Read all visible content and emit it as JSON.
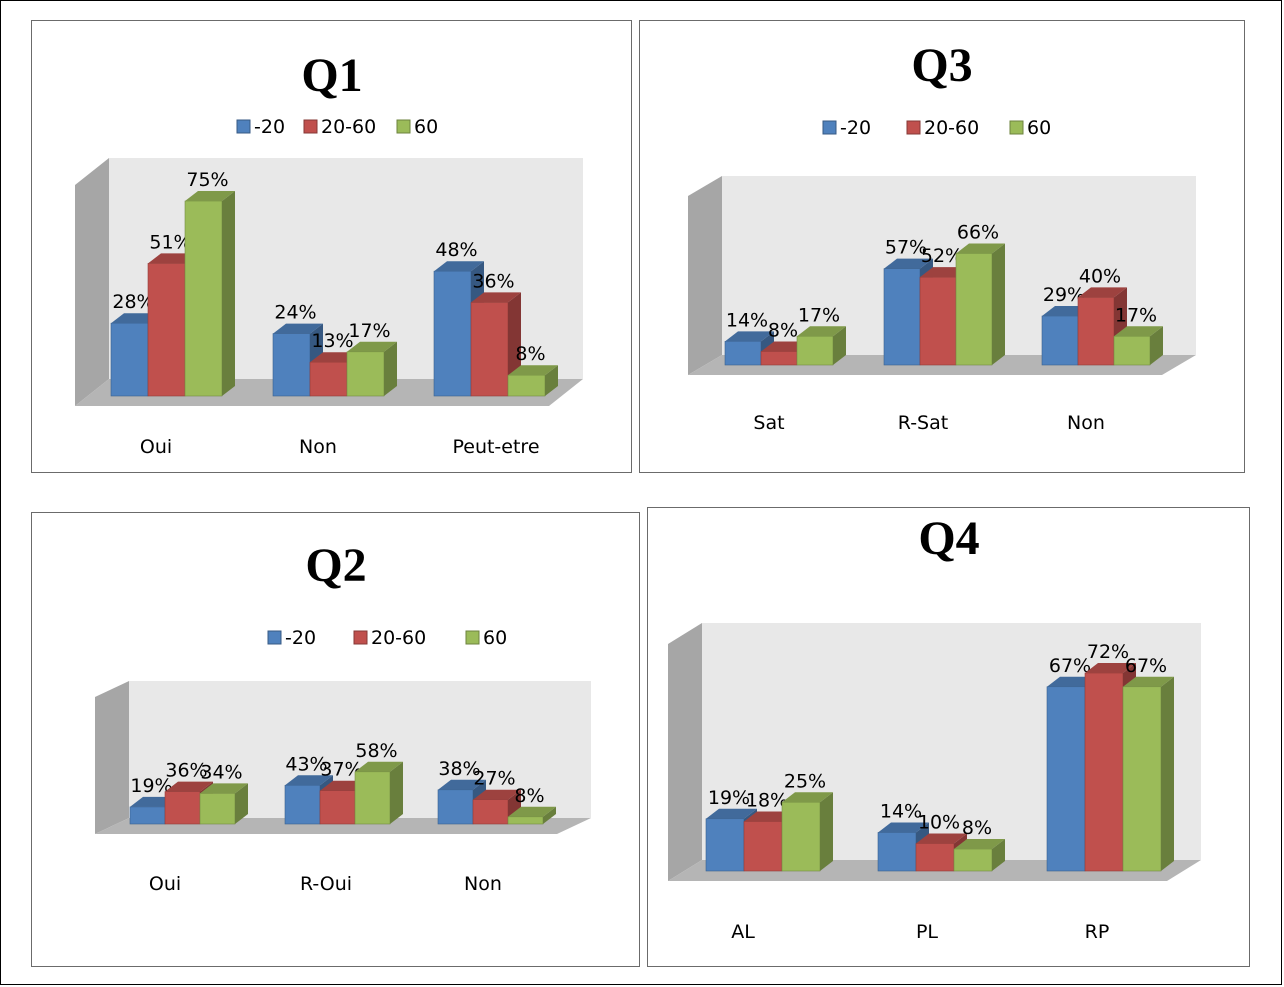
{
  "legend_series": [
    "-20",
    "20-60",
    "60"
  ],
  "colors": {
    "series": [
      "#4F81BD",
      "#C0504D",
      "#9BBB59"
    ],
    "back_wall": "#e8e8e8",
    "side_wall": "#a6a6a6",
    "floor": "#b5b5b5"
  },
  "chart_data": [
    {
      "type": "bar",
      "title": "Q1",
      "categories": [
        "Oui",
        "Non",
        "Peut-etre"
      ],
      "series": [
        {
          "name": "-20",
          "values": [
            28,
            24,
            48
          ]
        },
        {
          "name": "20-60",
          "values": [
            51,
            13,
            36
          ]
        },
        {
          "name": "60",
          "values": [
            75,
            17,
            8
          ]
        }
      ],
      "labels": [
        [
          "28%",
          "51%",
          "75%"
        ],
        [
          "24%",
          "13%",
          "17%"
        ],
        [
          "48%",
          "36%",
          "8%"
        ]
      ],
      "ylim": [
        0,
        80
      ],
      "legend_position": "top",
      "grid": false
    },
    {
      "type": "bar",
      "title": "Q3",
      "categories": [
        "Sat",
        "R-Sat",
        "Non"
      ],
      "series": [
        {
          "name": "-20",
          "values": [
            14,
            57,
            29
          ]
        },
        {
          "name": "20-60",
          "values": [
            8,
            52,
            40
          ]
        },
        {
          "name": "60",
          "values": [
            17,
            66,
            17
          ]
        }
      ],
      "labels": [
        [
          "14%",
          "8%",
          "17%"
        ],
        [
          "57%",
          "52%",
          "66%"
        ],
        [
          "29%",
          "40%",
          "17%"
        ]
      ],
      "ylim": [
        0,
        100
      ],
      "legend_position": "top",
      "grid": false
    },
    {
      "type": "bar",
      "title": "Q2",
      "categories": [
        "Oui",
        "R-Oui",
        "Non"
      ],
      "series": [
        {
          "name": "-20",
          "values": [
            19,
            43,
            38
          ]
        },
        {
          "name": "20-60",
          "values": [
            36,
            37,
            27
          ]
        },
        {
          "name": "60",
          "values": [
            34,
            58,
            8
          ]
        }
      ],
      "labels": [
        [
          "19%",
          "36%",
          "34%"
        ],
        [
          "43%",
          "37%",
          "58%"
        ],
        [
          "38%",
          "27%",
          "8%"
        ]
      ],
      "ylim": [
        0,
        100
      ],
      "legend_position": "top",
      "grid": false
    },
    {
      "type": "bar",
      "title": "Q4",
      "categories": [
        "AL",
        "PL",
        "RP"
      ],
      "series": [
        {
          "name": "-20",
          "values": [
            19,
            14,
            67
          ]
        },
        {
          "name": "20-60",
          "values": [
            18,
            10,
            72
          ]
        },
        {
          "name": "60",
          "values": [
            25,
            8,
            67
          ]
        }
      ],
      "labels": [
        [
          "19%",
          "18%",
          "25%"
        ],
        [
          "14%",
          "10%",
          "8%"
        ],
        [
          "67%",
          "72%",
          "67%"
        ]
      ],
      "ylim": [
        0,
        80
      ],
      "legend_position": "top",
      "grid": false
    }
  ]
}
